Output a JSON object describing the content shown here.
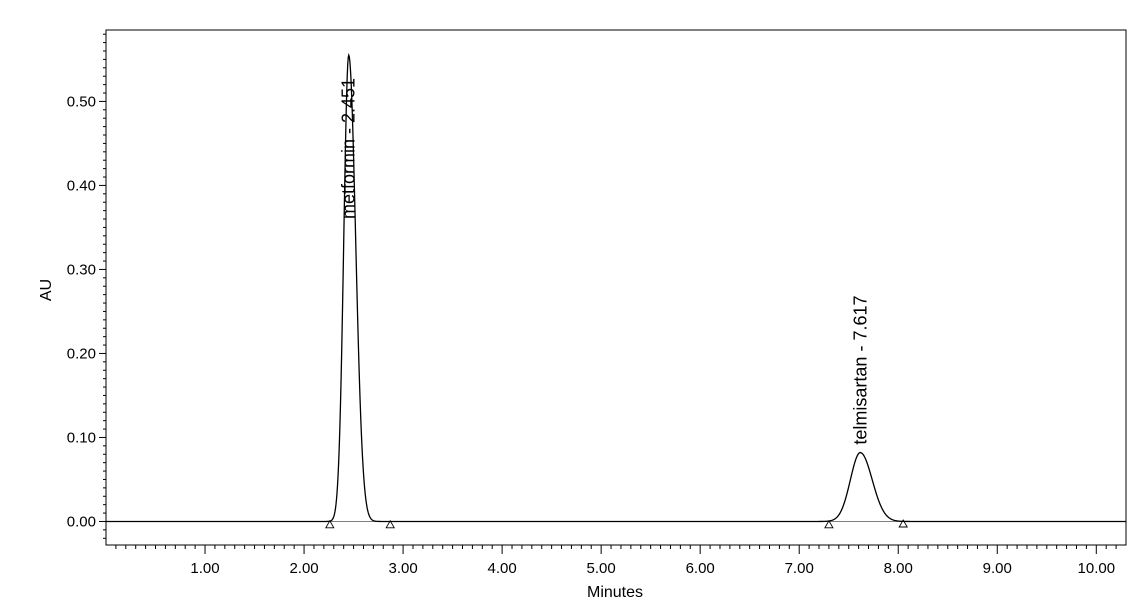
{
  "chart_data": {
    "type": "line",
    "title": "",
    "xlabel": "Minutes",
    "ylabel": "AU",
    "xlim": [
      0.0,
      10.3
    ],
    "ylim": [
      -0.028,
      0.585
    ],
    "grid": false,
    "legend": "none",
    "x_ticks": [
      1.0,
      2.0,
      3.0,
      4.0,
      5.0,
      6.0,
      7.0,
      8.0,
      9.0,
      10.0
    ],
    "x_tick_labels": [
      "1.00",
      "2.00",
      "3.00",
      "4.00",
      "5.00",
      "6.00",
      "7.00",
      "8.00",
      "9.00",
      "10.00"
    ],
    "y_ticks": [
      0.0,
      0.1,
      0.2,
      0.3,
      0.4,
      0.5
    ],
    "y_tick_labels": [
      "0.00",
      "0.10",
      "0.20",
      "0.30",
      "0.40",
      "0.50"
    ],
    "peaks": [
      {
        "name": "metformin",
        "label": "metformin - 2.451",
        "retention_time": 2.451,
        "height": 0.555,
        "sigma_left": 0.05,
        "sigma_right": 0.07,
        "start": 2.26,
        "end": 2.87
      },
      {
        "name": "telmisartan",
        "label": "telmisartan - 7.617",
        "retention_time": 7.617,
        "height": 0.082,
        "sigma_left": 0.1,
        "sigma_right": 0.12,
        "start": 7.3,
        "end": 8.05
      }
    ],
    "baseline_markers": [
      {
        "x": 2.26,
        "y": -0.004
      },
      {
        "x": 2.87,
        "y": -0.004
      },
      {
        "x": 7.3,
        "y": -0.004
      },
      {
        "x": 8.05,
        "y": -0.003
      }
    ],
    "line_color": "#000000",
    "baseline_color": "#7f7f7f"
  }
}
